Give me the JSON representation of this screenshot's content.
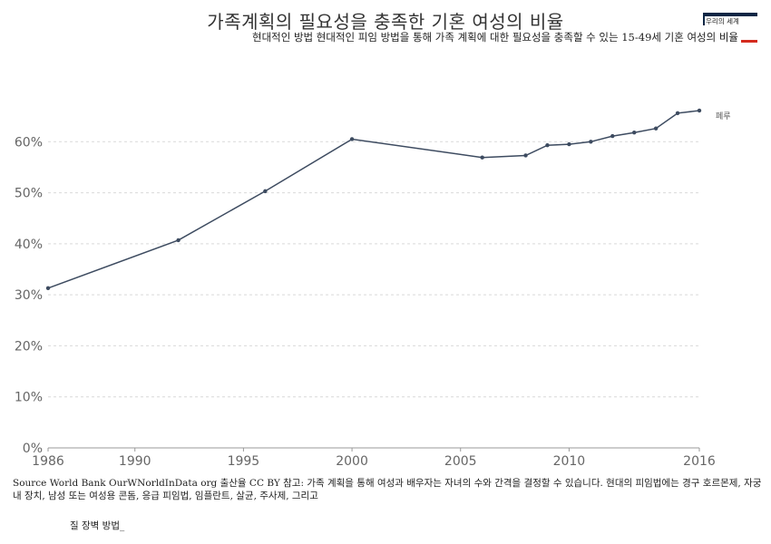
{
  "title": "가족계획의 필요성을 충족한 기혼 여성의 비율",
  "subtitle": "현대적인 방법 현대적인 피임 방법을 통해 가족 계획에 대한 필요성을 충족할 수 있는 15-49세 기혼 여성의 비율",
  "logo": {
    "text": "우리의 세계",
    "colors": {
      "navy": "#0d2645",
      "red": "#d42b1e"
    }
  },
  "source": "Source World Bank OurWNorldInData org 출산율 CC BY 참고: 가족 계획을 통해 여성과 배우자는 자녀의 수와 간격을 결정할 수 있습니다. 현대의 피임법에는 경구 호르몬제, 자궁내 장치, 남성 또는 여성용 콘돔, 응급 피임법, 임플란트, 살균, 주사제, 그리고",
  "source_tail": "질 장벽 방법_",
  "chart_data": {
    "type": "line",
    "xlim": [
      1986,
      2016
    ],
    "ylim": [
      0,
      70
    ],
    "x_ticks": [
      1986,
      1990,
      1995,
      2000,
      2005,
      2010,
      2016
    ],
    "y_ticks": [
      0,
      10,
      20,
      30,
      40,
      50,
      60
    ],
    "y_tick_labels": [
      "0%",
      "10%",
      "20%",
      "30%",
      "40%",
      "50%",
      "60%"
    ],
    "grid": true,
    "line_color": "#3d4b60",
    "series": [
      {
        "name": "페루",
        "x": [
          1986,
          1992,
          1996,
          2000,
          2006,
          2008,
          2009,
          2010,
          2011,
          2012,
          2013,
          2014,
          2015,
          2016
        ],
        "values": [
          31.3,
          40.7,
          50.3,
          60.5,
          56.9,
          57.3,
          59.3,
          59.5,
          60.0,
          61.1,
          61.8,
          62.6,
          65.6,
          66.1
        ]
      }
    ]
  }
}
